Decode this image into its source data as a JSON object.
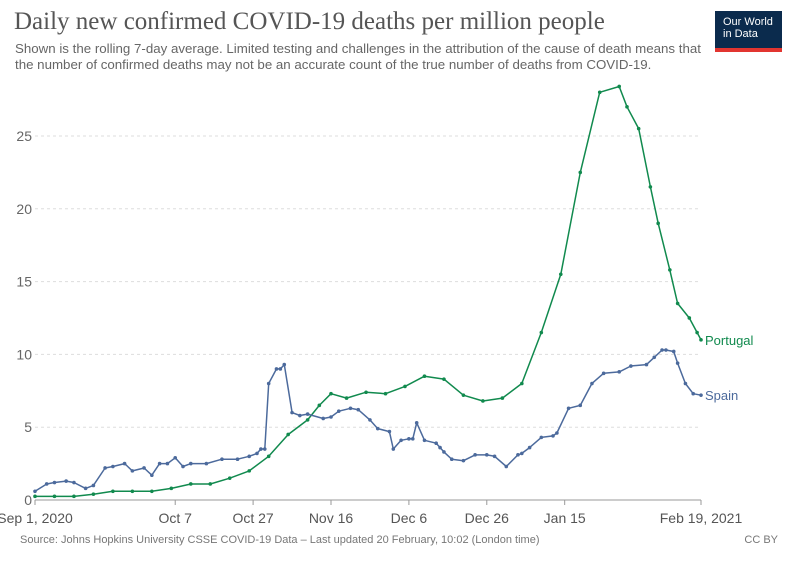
{
  "header": {
    "title": "Daily new confirmed COVID-19 deaths per million people",
    "subtitle": "Shown is the rolling 7-day average. Limited testing and challenges in the attribution of the cause of death means that the number of confirmed deaths may not be an accurate count of the true number of deaths from COVID-19.",
    "logo_line1": "Our World",
    "logo_line2": "in Data"
  },
  "footer": {
    "source": "Source: Johns Hopkins University CSSE COVID-19 Data – Last updated 20 February, 10:02 (London time)",
    "license": "CC BY"
  },
  "colors": {
    "portugal": "#118a4e",
    "spain": "#4c6a9c",
    "grid": "#dddddd",
    "axis": "#999999"
  },
  "chart_data": {
    "type": "line",
    "title": "Daily new confirmed COVID-19 deaths per million people",
    "x_tick_labels": [
      "Sep 1, 2020",
      "Oct 7",
      "Oct 27",
      "Nov 16",
      "Dec 6",
      "Dec 26",
      "Jan 15",
      "Feb 19, 2021"
    ],
    "x_tick_days": [
      0,
      36,
      56,
      76,
      96,
      116,
      136,
      171
    ],
    "y_ticks": [
      0,
      5,
      10,
      15,
      20,
      25
    ],
    "ylim": [
      0,
      28.5
    ],
    "xlim": [
      0,
      171
    ],
    "grid": "horizontal dashed",
    "legend": "line-end labels",
    "series": [
      {
        "name": "Portugal",
        "color": "#118a4e",
        "x": [
          0,
          5,
          10,
          15,
          20,
          25,
          30,
          35,
          40,
          45,
          50,
          55,
          60,
          65,
          70,
          73,
          76,
          80,
          85,
          90,
          95,
          100,
          105,
          110,
          115,
          120,
          125,
          130,
          135,
          140,
          145,
          150,
          152,
          155,
          158,
          160,
          163,
          165,
          168,
          170,
          171
        ],
        "y": [
          0.25,
          0.25,
          0.25,
          0.4,
          0.6,
          0.6,
          0.6,
          0.8,
          1.1,
          1.1,
          1.5,
          2.0,
          3.0,
          4.5,
          5.5,
          6.5,
          7.3,
          7.0,
          7.4,
          7.3,
          7.8,
          8.5,
          8.3,
          7.2,
          6.8,
          7.0,
          8.0,
          11.5,
          15.5,
          22.5,
          28.0,
          28.4,
          27.0,
          25.5,
          21.5,
          19.0,
          15.8,
          13.5,
          12.5,
          11.5,
          11.0
        ]
      },
      {
        "name": "Spain",
        "color": "#4c6a9c",
        "x": [
          0,
          3,
          5,
          8,
          10,
          13,
          15,
          18,
          20,
          23,
          25,
          28,
          30,
          32,
          34,
          36,
          38,
          40,
          44,
          48,
          52,
          55,
          57,
          58,
          59,
          60,
          62,
          63,
          64,
          66,
          68,
          70,
          74,
          76,
          78,
          81,
          83,
          86,
          88,
          91,
          92,
          94,
          96,
          97,
          98,
          100,
          103,
          104,
          105,
          107,
          110,
          113,
          116,
          118,
          121,
          124,
          125,
          127,
          130,
          133,
          134,
          137,
          140,
          143,
          146,
          150,
          153,
          157,
          159,
          161,
          162,
          164,
          165,
          167,
          169,
          171
        ],
        "y": [
          0.6,
          1.1,
          1.2,
          1.3,
          1.2,
          0.8,
          1.0,
          2.2,
          2.3,
          2.5,
          2.0,
          2.2,
          1.7,
          2.5,
          2.5,
          2.9,
          2.3,
          2.5,
          2.5,
          2.8,
          2.8,
          3.0,
          3.2,
          3.5,
          3.5,
          8.0,
          9.0,
          9.0,
          9.3,
          6.0,
          5.8,
          5.9,
          5.6,
          5.7,
          6.1,
          6.3,
          6.2,
          5.5,
          4.9,
          4.7,
          3.5,
          4.1,
          4.2,
          4.2,
          5.3,
          4.1,
          3.9,
          3.6,
          3.3,
          2.8,
          2.7,
          3.1,
          3.1,
          3.0,
          2.3,
          3.1,
          3.2,
          3.6,
          4.3,
          4.4,
          4.6,
          6.3,
          6.5,
          8.0,
          8.7,
          8.8,
          9.2,
          9.3,
          9.8,
          10.3,
          10.3,
          10.2,
          9.4,
          8.0,
          7.3,
          7.2
        ]
      }
    ]
  }
}
